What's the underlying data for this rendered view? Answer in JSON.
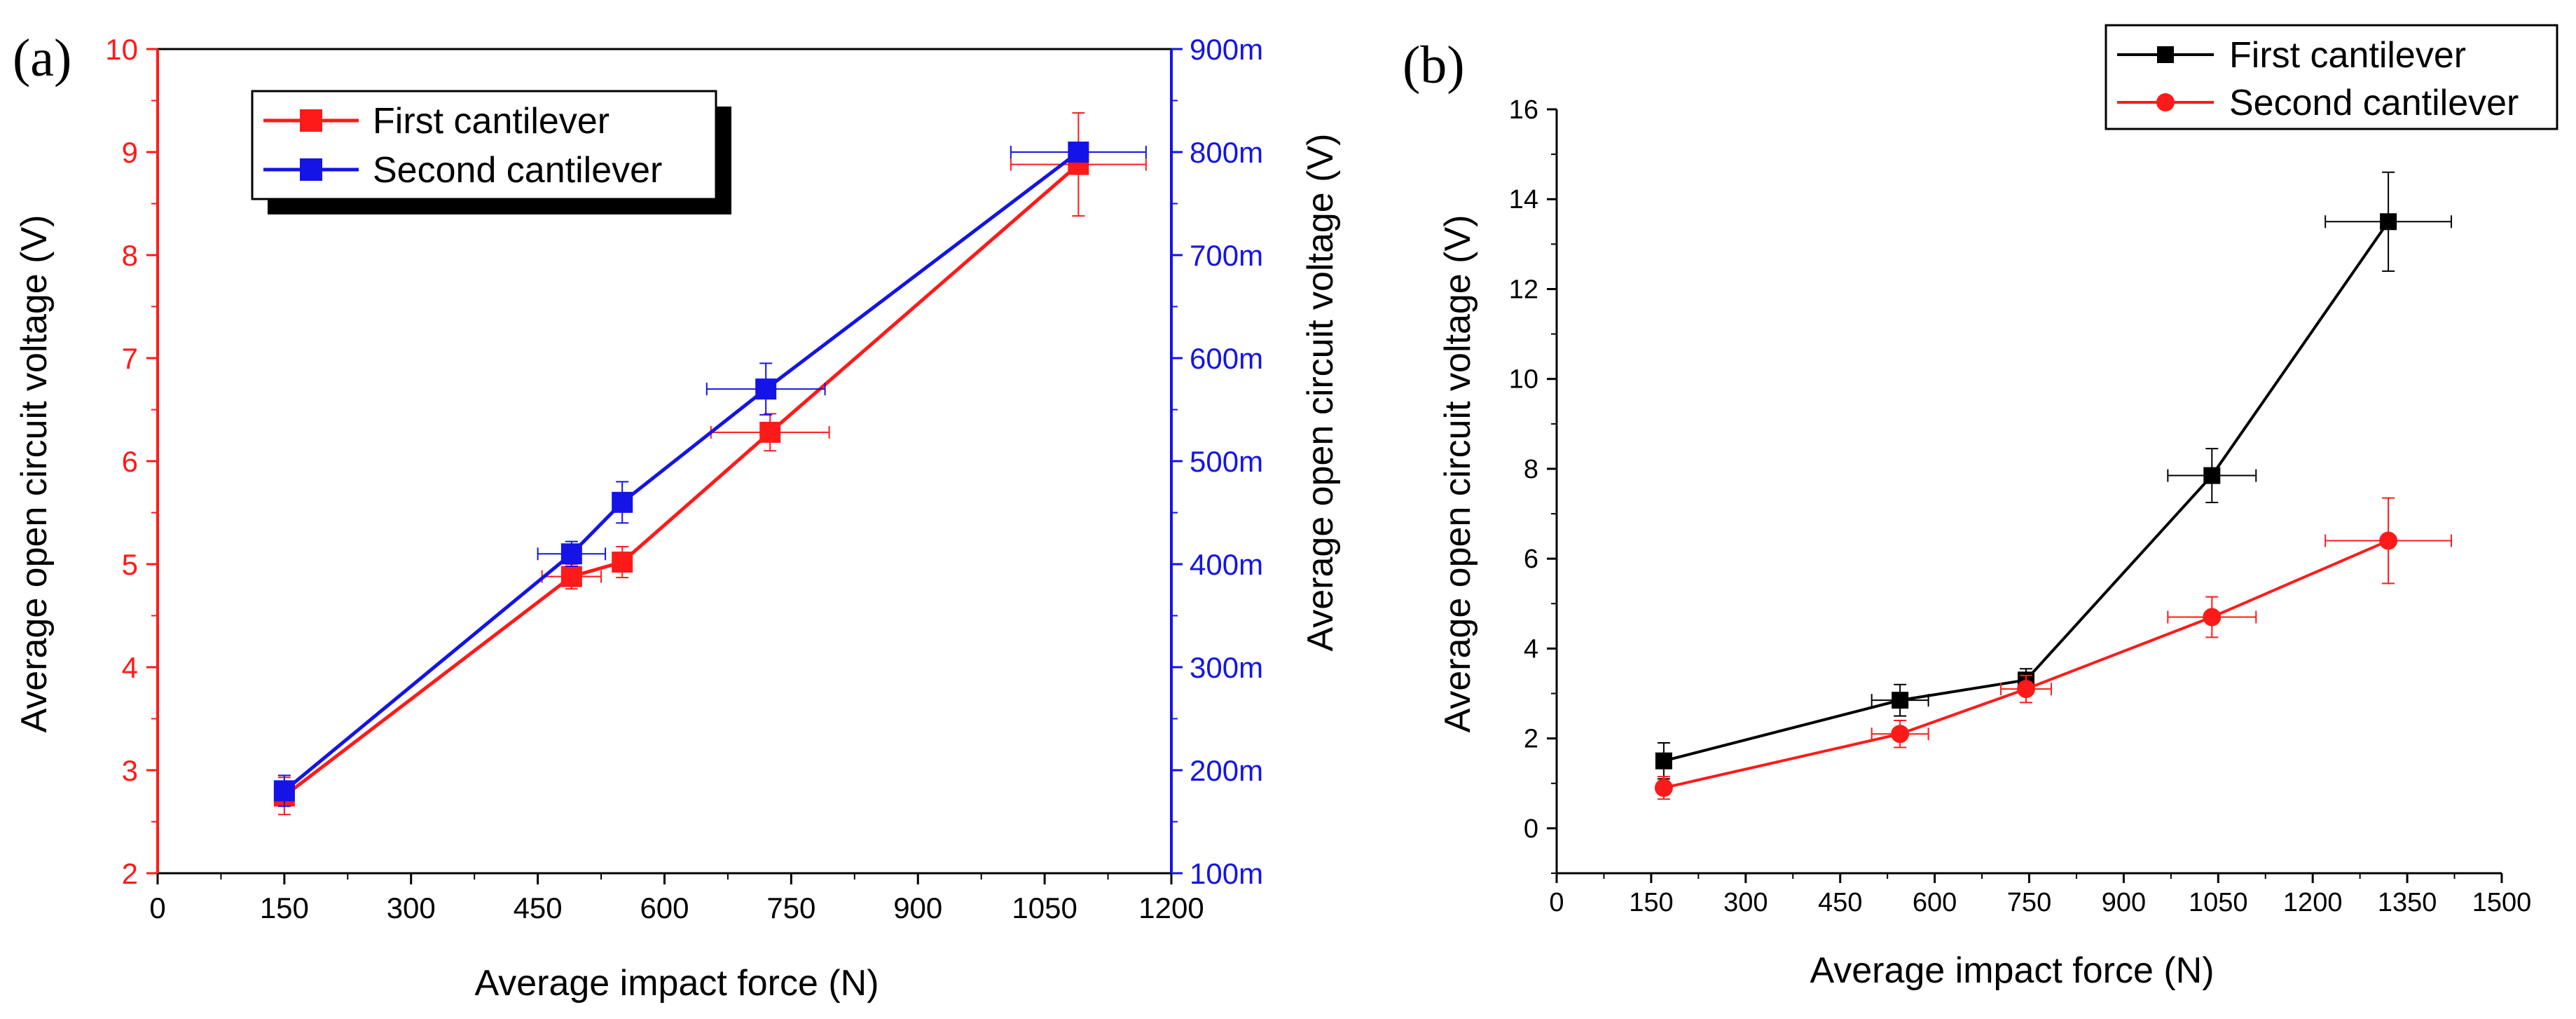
{
  "colors": {
    "red": "#ff1a1a",
    "blue": "#1414e6",
    "black": "#000000"
  },
  "chart_data": [
    {
      "panel_label": "(a)",
      "type": "line",
      "title": "",
      "xlabel": "Average impact force (N)",
      "ylabel_left": "Average   open circuit  voltage (V)",
      "ylabel_right": "Average open circuit voltage (V)",
      "xlim": [
        0,
        1200
      ],
      "ylim_left": [
        2,
        10
      ],
      "ylim_right": [
        0.1,
        0.9
      ],
      "x_ticks": [
        0,
        150,
        300,
        450,
        600,
        750,
        900,
        1050,
        1200
      ],
      "x_tick_labels": [
        "0",
        "150",
        "300",
        "450",
        "600",
        "750",
        "900",
        "1050",
        "1200"
      ],
      "y_left_ticks": [
        2,
        3,
        4,
        5,
        6,
        7,
        8,
        9,
        10
      ],
      "y_left_tick_labels": [
        "2",
        "3",
        "4",
        "5",
        "6",
        "7",
        "8",
        "9",
        "10"
      ],
      "y_right_ticks": [
        0.1,
        0.2,
        0.3,
        0.4,
        0.5,
        0.6,
        0.7,
        0.8,
        0.9
      ],
      "y_right_tick_labels": [
        "100m",
        "200m",
        "300m",
        "400m",
        "500m",
        "600m",
        "700m",
        "800m",
        "900m"
      ],
      "legend_position": "top-left",
      "series": [
        {
          "name": "First cantilever",
          "axis": "left",
          "color": "#ff1a1a",
          "marker": "square",
          "x": [
            150,
            490,
            550,
            725,
            1090
          ],
          "y": [
            2.75,
            4.88,
            5.02,
            6.28,
            8.88
          ],
          "xerr": [
            0,
            35,
            0,
            70,
            80
          ],
          "yerr": [
            0.18,
            0.12,
            0.15,
            0.18,
            0.5
          ]
        },
        {
          "name": "Second cantilever",
          "axis": "right",
          "color": "#1414e6",
          "marker": "square",
          "x": [
            150,
            490,
            550,
            720,
            1090
          ],
          "y": [
            0.18,
            0.41,
            0.46,
            0.57,
            0.8
          ],
          "xerr": [
            0,
            40,
            0,
            70,
            80
          ],
          "yerr": [
            0.015,
            0.012,
            0.02,
            0.025,
            0.005
          ]
        }
      ]
    },
    {
      "panel_label": "(b)",
      "type": "line",
      "title": "",
      "xlabel": "Average impact force (N)",
      "ylabel": "Average open circuit  voltage (V)",
      "xlim": [
        0,
        1500
      ],
      "ylim": [
        -1,
        16
      ],
      "x_ticks": [
        0,
        150,
        300,
        450,
        600,
        750,
        900,
        1050,
        1200,
        1350,
        1500
      ],
      "x_tick_labels": [
        "0",
        "150",
        "300",
        "450",
        "600",
        "750",
        "900",
        "1050",
        "1200",
        "1350",
        "1500"
      ],
      "y_ticks": [
        0,
        2,
        4,
        6,
        8,
        10,
        12,
        14,
        16
      ],
      "y_tick_labels": [
        "0",
        "2",
        "4",
        "6",
        "8",
        "10",
        "12",
        "14",
        "16"
      ],
      "legend_position": "top-right",
      "series": [
        {
          "name": "First cantilever",
          "color": "#000000",
          "marker": "square",
          "x": [
            170,
            545,
            745,
            1040,
            1320
          ],
          "y": [
            1.5,
            2.85,
            3.3,
            7.85,
            13.5
          ],
          "xerr": [
            0,
            45,
            0,
            70,
            100
          ],
          "yerr": [
            0.4,
            0.35,
            0.25,
            0.6,
            1.1
          ]
        },
        {
          "name": "Second cantilever",
          "color": "#ff1a1a",
          "marker": "circle",
          "x": [
            170,
            545,
            745,
            1040,
            1320
          ],
          "y": [
            0.9,
            2.1,
            3.1,
            4.7,
            6.4
          ],
          "xerr": [
            0,
            45,
            40,
            70,
            100
          ],
          "yerr": [
            0.25,
            0.3,
            0.3,
            0.45,
            0.95
          ]
        }
      ]
    }
  ]
}
